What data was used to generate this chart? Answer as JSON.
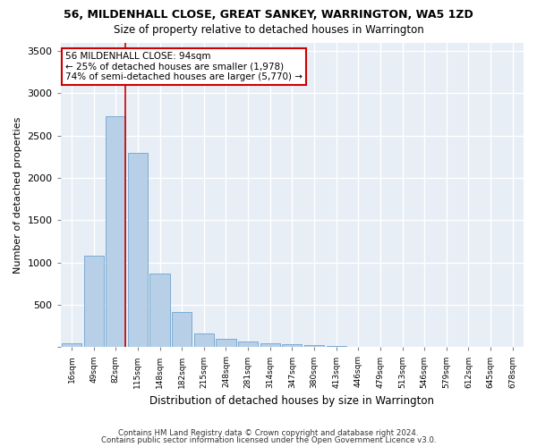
{
  "title": "56, MILDENHALL CLOSE, GREAT SANKEY, WARRINGTON, WA5 1ZD",
  "subtitle": "Size of property relative to detached houses in Warrington",
  "xlabel": "Distribution of detached houses by size in Warrington",
  "ylabel": "Number of detached properties",
  "annotation_title": "56 MILDENHALL CLOSE: 94sqm",
  "annotation_line1": "← 25% of detached houses are smaller (1,978)",
  "annotation_line2": "74% of semi-detached houses are larger (5,770) →",
  "footer1": "Contains HM Land Registry data © Crown copyright and database right 2024.",
  "footer2": "Contains public sector information licensed under the Open Government Licence v3.0.",
  "bar_color": "#b8cfe8",
  "bar_edge_color": "#6ea3cd",
  "bg_color": "#e8eef6",
  "grid_color": "#ffffff",
  "annotation_box_color": "#ffffff",
  "annotation_box_edge": "#cc0000",
  "vline_color": "#cc0000",
  "bins": [
    "16sqm",
    "49sqm",
    "82sqm",
    "115sqm",
    "148sqm",
    "182sqm",
    "215sqm",
    "248sqm",
    "281sqm",
    "314sqm",
    "347sqm",
    "380sqm",
    "413sqm",
    "446sqm",
    "479sqm",
    "513sqm",
    "546sqm",
    "579sqm",
    "612sqm",
    "645sqm",
    "678sqm"
  ],
  "values": [
    50,
    1080,
    2730,
    2300,
    870,
    420,
    160,
    100,
    70,
    50,
    30,
    20,
    10,
    8,
    5,
    3,
    2,
    1,
    1,
    0,
    0
  ],
  "vline_bin_index": 2.42,
  "ylim": [
    0,
    3600
  ],
  "yticks": [
    0,
    500,
    1000,
    1500,
    2000,
    2500,
    3000,
    3500
  ]
}
